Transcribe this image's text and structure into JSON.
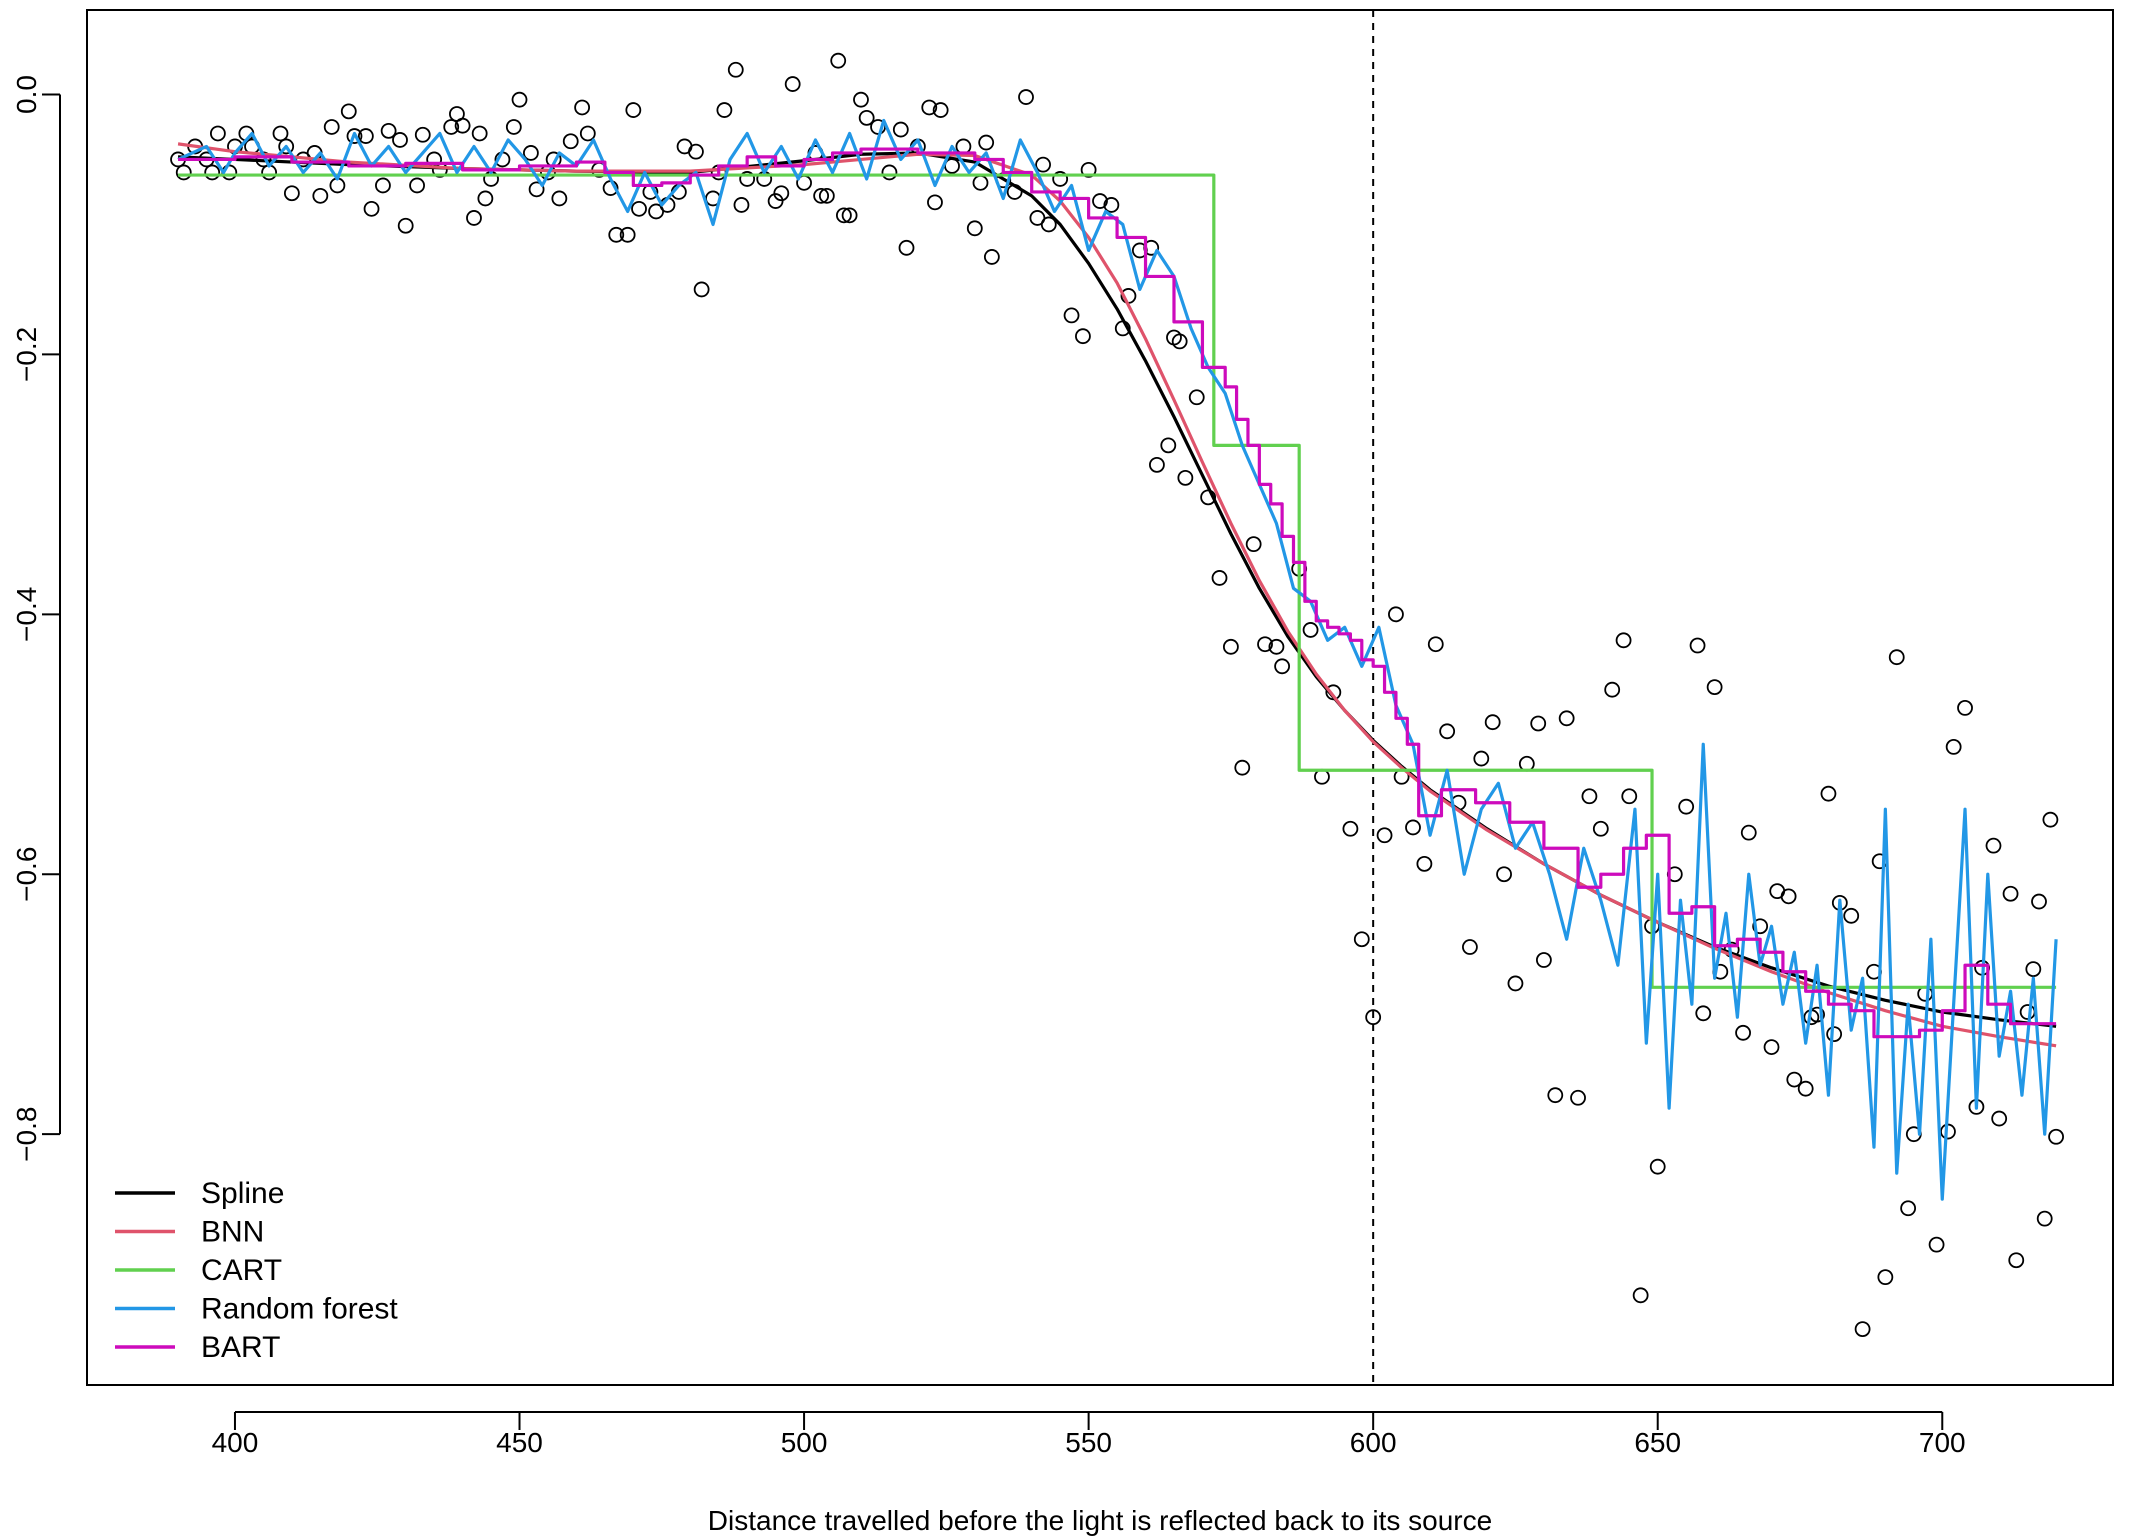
{
  "chart_data": {
    "type": "scatter",
    "title": "",
    "xlabel": "Distance travelled before the light is reflected back to its source",
    "ylabel": "",
    "xlim": [
      374,
      730
    ],
    "ylim": [
      -0.993,
      0.065
    ],
    "x_ticks": [
      400,
      450,
      500,
      550,
      600,
      650,
      700
    ],
    "x_tick_labels": [
      "400",
      "450",
      "500",
      "550",
      "600",
      "650",
      "700"
    ],
    "y_ticks": [
      0.0,
      -0.2,
      -0.4,
      -0.6,
      -0.8
    ],
    "y_tick_labels": [
      "0.0",
      "−0.2",
      "−0.4",
      "−0.6",
      "−0.8"
    ],
    "grid": false,
    "legend_position": "bottom-left",
    "reference_line": {
      "x": 600,
      "style": "dashed"
    },
    "points": [
      [
        390,
        -0.05
      ],
      [
        391,
        -0.06
      ],
      [
        393,
        -0.04
      ],
      [
        395,
        -0.05
      ],
      [
        396,
        -0.06
      ],
      [
        397,
        -0.03
      ],
      [
        399,
        -0.06
      ],
      [
        400,
        -0.04
      ],
      [
        402,
        -0.03
      ],
      [
        403,
        -0.04
      ],
      [
        405,
        -0.05
      ],
      [
        406,
        -0.06
      ],
      [
        408,
        -0.03
      ],
      [
        409,
        -0.04
      ],
      [
        410,
        -0.076
      ],
      [
        412,
        -0.05
      ],
      [
        414,
        -0.045
      ],
      [
        415,
        -0.078
      ],
      [
        417,
        -0.025
      ],
      [
        418,
        -0.07
      ],
      [
        420,
        -0.013
      ],
      [
        421,
        -0.032
      ],
      [
        423,
        -0.032
      ],
      [
        424,
        -0.088
      ],
      [
        426,
        -0.07
      ],
      [
        427,
        -0.028
      ],
      [
        429,
        -0.035
      ],
      [
        430,
        -0.101
      ],
      [
        432,
        -0.07
      ],
      [
        433,
        -0.031
      ],
      [
        435,
        -0.05
      ],
      [
        436,
        -0.058
      ],
      [
        438,
        -0.025
      ],
      [
        439,
        -0.015
      ],
      [
        440,
        -0.024
      ],
      [
        442,
        -0.095
      ],
      [
        443,
        -0.03
      ],
      [
        444,
        -0.08
      ],
      [
        445,
        -0.065
      ],
      [
        447,
        -0.05
      ],
      [
        449,
        -0.025
      ],
      [
        450,
        -0.004
      ],
      [
        452,
        -0.045
      ],
      [
        453,
        -0.073
      ],
      [
        455,
        -0.06
      ],
      [
        456,
        -0.05
      ],
      [
        457,
        -0.08
      ],
      [
        459,
        -0.036
      ],
      [
        461,
        -0.01
      ],
      [
        462,
        -0.03
      ],
      [
        464,
        -0.058
      ],
      [
        466,
        -0.072
      ],
      [
        467,
        -0.108
      ],
      [
        469,
        -0.108
      ],
      [
        470,
        -0.012
      ],
      [
        471,
        -0.088
      ],
      [
        473,
        -0.075
      ],
      [
        474,
        -0.09
      ],
      [
        476,
        -0.085
      ],
      [
        478,
        -0.075
      ],
      [
        479,
        -0.04
      ],
      [
        481,
        -0.044
      ],
      [
        482,
        -0.15
      ],
      [
        484,
        -0.08
      ],
      [
        485,
        -0.06
      ],
      [
        486,
        -0.012
      ],
      [
        488,
        0.019
      ],
      [
        489,
        -0.085
      ],
      [
        490,
        -0.065
      ],
      [
        493,
        -0.065
      ],
      [
        495,
        -0.082
      ],
      [
        496,
        -0.076
      ],
      [
        498,
        0.008
      ],
      [
        500,
        -0.068
      ],
      [
        502,
        -0.045
      ],
      [
        503,
        -0.078
      ],
      [
        504,
        -0.078
      ],
      [
        506,
        0.026
      ],
      [
        507,
        -0.093
      ],
      [
        508,
        -0.093
      ],
      [
        510,
        -0.004
      ],
      [
        511,
        -0.018
      ],
      [
        513,
        -0.025
      ],
      [
        515,
        -0.06
      ],
      [
        517,
        -0.027
      ],
      [
        518,
        -0.118
      ],
      [
        520,
        -0.04
      ],
      [
        522,
        -0.01
      ],
      [
        523,
        -0.083
      ],
      [
        524,
        -0.012
      ],
      [
        526,
        -0.055
      ],
      [
        528,
        -0.04
      ],
      [
        530,
        -0.103
      ],
      [
        531,
        -0.068
      ],
      [
        532,
        -0.037
      ],
      [
        533,
        -0.125
      ],
      [
        535,
        -0.066
      ],
      [
        537,
        -0.075
      ],
      [
        539,
        -0.002
      ],
      [
        541,
        -0.095
      ],
      [
        542,
        -0.054
      ],
      [
        543,
        -0.1
      ],
      [
        545,
        -0.065
      ],
      [
        547,
        -0.17
      ],
      [
        549,
        -0.186
      ],
      [
        550,
        -0.058
      ],
      [
        552,
        -0.082
      ],
      [
        554,
        -0.085
      ],
      [
        556,
        -0.18
      ],
      [
        557,
        -0.155
      ],
      [
        559,
        -0.12
      ],
      [
        561,
        -0.118
      ],
      [
        562,
        -0.285
      ],
      [
        564,
        -0.27
      ],
      [
        565,
        -0.187
      ],
      [
        566,
        -0.19
      ],
      [
        567,
        -0.295
      ],
      [
        569,
        -0.233
      ],
      [
        571,
        -0.31
      ],
      [
        573,
        -0.372
      ],
      [
        575,
        -0.425
      ],
      [
        577,
        -0.518
      ],
      [
        579,
        -0.346
      ],
      [
        581,
        -0.423
      ],
      [
        583,
        -0.425
      ],
      [
        584,
        -0.44
      ],
      [
        587,
        -0.365
      ],
      [
        589,
        -0.412
      ],
      [
        591,
        -0.525
      ],
      [
        593,
        -0.46
      ],
      [
        596,
        -0.565
      ],
      [
        598,
        -0.65
      ],
      [
        600,
        -0.71
      ],
      [
        602,
        -0.57
      ],
      [
        604,
        -0.4
      ],
      [
        605,
        -0.525
      ],
      [
        607,
        -0.564
      ],
      [
        609,
        -0.592
      ],
      [
        611,
        -0.423
      ],
      [
        613,
        -0.49
      ],
      [
        615,
        -0.545
      ],
      [
        617,
        -0.656
      ],
      [
        619,
        -0.511
      ],
      [
        621,
        -0.483
      ],
      [
        623,
        -0.6
      ],
      [
        625,
        -0.684
      ],
      [
        627,
        -0.515
      ],
      [
        629,
        -0.484
      ],
      [
        630,
        -0.666
      ],
      [
        632,
        -0.77
      ],
      [
        634,
        -0.48
      ],
      [
        636,
        -0.772
      ],
      [
        638,
        -0.54
      ],
      [
        640,
        -0.565
      ],
      [
        642,
        -0.458
      ],
      [
        644,
        -0.42
      ],
      [
        645,
        -0.54
      ],
      [
        647,
        -0.924
      ],
      [
        649,
        -0.64
      ],
      [
        650,
        -0.825
      ],
      [
        653,
        -0.6
      ],
      [
        655,
        -0.548
      ],
      [
        657,
        -0.424
      ],
      [
        658,
        -0.707
      ],
      [
        660,
        -0.456
      ],
      [
        661,
        -0.675
      ],
      [
        663,
        -0.658
      ],
      [
        665,
        -0.722
      ],
      [
        666,
        -0.568
      ],
      [
        668,
        -0.64
      ],
      [
        670,
        -0.733
      ],
      [
        671,
        -0.613
      ],
      [
        673,
        -0.617
      ],
      [
        674,
        -0.758
      ],
      [
        676,
        -0.765
      ],
      [
        677,
        -0.71
      ],
      [
        678,
        -0.708
      ],
      [
        680,
        -0.538
      ],
      [
        681,
        -0.723
      ],
      [
        682,
        -0.622
      ],
      [
        684,
        -0.632
      ],
      [
        686,
        -0.95
      ],
      [
        688,
        -0.675
      ],
      [
        689,
        -0.59
      ],
      [
        690,
        -0.91
      ],
      [
        692,
        -0.433
      ],
      [
        694,
        -0.857
      ],
      [
        695,
        -0.8
      ],
      [
        697,
        -0.692
      ],
      [
        699,
        -0.885
      ],
      [
        701,
        -0.798
      ],
      [
        702,
        -0.502
      ],
      [
        704,
        -0.472
      ],
      [
        706,
        -0.779
      ],
      [
        707,
        -0.672
      ],
      [
        709,
        -0.578
      ],
      [
        710,
        -0.788
      ],
      [
        712,
        -0.615
      ],
      [
        713,
        -0.897
      ],
      [
        715,
        -0.706
      ],
      [
        716,
        -0.673
      ],
      [
        717,
        -0.621
      ],
      [
        718,
        -0.865
      ],
      [
        719,
        -0.558
      ],
      [
        720,
        -0.802
      ]
    ],
    "series": [
      {
        "name": "Spline",
        "color": "#000000",
        "x": [
          390,
          400,
          420,
          440,
          460,
          480,
          500,
          510,
          520,
          530,
          540,
          545,
          550,
          555,
          560,
          565,
          570,
          575,
          580,
          585,
          590,
          595,
          600,
          605,
          610,
          620,
          630,
          640,
          650,
          660,
          670,
          680,
          690,
          700,
          710,
          720
        ],
        "y": [
          -0.048,
          -0.05,
          -0.054,
          -0.057,
          -0.059,
          -0.06,
          -0.051,
          -0.046,
          -0.045,
          -0.052,
          -0.078,
          -0.1,
          -0.13,
          -0.165,
          -0.205,
          -0.248,
          -0.293,
          -0.338,
          -0.38,
          -0.417,
          -0.448,
          -0.474,
          -0.497,
          -0.517,
          -0.535,
          -0.565,
          -0.592,
          -0.616,
          -0.637,
          -0.656,
          -0.672,
          -0.686,
          -0.697,
          -0.706,
          -0.712,
          -0.717
        ]
      },
      {
        "name": "BNN",
        "color": "#DF536B",
        "x": [
          390,
          400,
          420,
          440,
          460,
          480,
          500,
          510,
          520,
          530,
          540,
          545,
          550,
          555,
          560,
          565,
          570,
          575,
          580,
          585,
          590,
          595,
          600,
          605,
          610,
          620,
          630,
          640,
          650,
          660,
          670,
          680,
          690,
          700,
          710,
          720
        ],
        "y": [
          -0.038,
          -0.044,
          -0.052,
          -0.057,
          -0.059,
          -0.059,
          -0.054,
          -0.05,
          -0.046,
          -0.047,
          -0.062,
          -0.082,
          -0.11,
          -0.145,
          -0.188,
          -0.235,
          -0.283,
          -0.33,
          -0.374,
          -0.413,
          -0.446,
          -0.474,
          -0.498,
          -0.518,
          -0.536,
          -0.566,
          -0.592,
          -0.616,
          -0.637,
          -0.657,
          -0.675,
          -0.691,
          -0.705,
          -0.717,
          -0.725,
          -0.732
        ]
      },
      {
        "name": "CART",
        "color": "#61D04F",
        "step": true,
        "x": [
          390,
          571,
          572,
          572,
          586,
          587,
          587,
          588,
          588,
          648,
          649,
          649,
          720
        ],
        "y": [
          -0.062,
          -0.062,
          -0.062,
          -0.27,
          -0.27,
          -0.27,
          -0.52,
          -0.52,
          -0.52,
          -0.52,
          -0.52,
          -0.687,
          -0.687
        ]
      },
      {
        "name": "Random forest",
        "color": "#2297E6",
        "x": [
          390,
          395,
          398,
          400,
          403,
          406,
          409,
          412,
          415,
          418,
          421,
          424,
          427,
          430,
          433,
          436,
          439,
          442,
          445,
          448,
          451,
          454,
          457,
          460,
          463,
          466,
          469,
          472,
          475,
          478,
          481,
          484,
          487,
          490,
          493,
          496,
          499,
          502,
          505,
          508,
          511,
          514,
          517,
          520,
          523,
          526,
          529,
          532,
          535,
          538,
          541,
          544,
          547,
          550,
          553,
          556,
          559,
          562,
          565,
          568,
          571,
          574,
          577,
          580,
          583,
          586,
          589,
          592,
          595,
          598,
          601,
          604,
          607,
          610,
          613,
          616,
          619,
          622,
          625,
          628,
          631,
          634,
          637,
          640,
          643,
          646,
          648,
          650,
          652,
          654,
          656,
          658,
          660,
          662,
          664,
          666,
          668,
          670,
          672,
          674,
          676,
          678,
          680,
          682,
          684,
          686,
          688,
          690,
          692,
          694,
          696,
          698,
          700,
          702,
          704,
          706,
          708,
          710,
          712,
          714,
          716,
          718,
          720
        ],
        "y": [
          -0.05,
          -0.04,
          -0.06,
          -0.045,
          -0.03,
          -0.055,
          -0.04,
          -0.06,
          -0.045,
          -0.065,
          -0.03,
          -0.055,
          -0.04,
          -0.06,
          -0.045,
          -0.03,
          -0.06,
          -0.04,
          -0.06,
          -0.035,
          -0.05,
          -0.07,
          -0.045,
          -0.055,
          -0.035,
          -0.065,
          -0.09,
          -0.06,
          -0.085,
          -0.07,
          -0.06,
          -0.1,
          -0.05,
          -0.03,
          -0.06,
          -0.04,
          -0.065,
          -0.035,
          -0.06,
          -0.03,
          -0.065,
          -0.02,
          -0.05,
          -0.035,
          -0.07,
          -0.04,
          -0.06,
          -0.045,
          -0.08,
          -0.035,
          -0.06,
          -0.09,
          -0.07,
          -0.12,
          -0.09,
          -0.1,
          -0.15,
          -0.12,
          -0.14,
          -0.18,
          -0.21,
          -0.23,
          -0.27,
          -0.3,
          -0.33,
          -0.38,
          -0.39,
          -0.42,
          -0.41,
          -0.44,
          -0.41,
          -0.47,
          -0.5,
          -0.57,
          -0.52,
          -0.6,
          -0.55,
          -0.53,
          -0.58,
          -0.56,
          -0.6,
          -0.65,
          -0.58,
          -0.62,
          -0.67,
          -0.55,
          -0.73,
          -0.6,
          -0.78,
          -0.62,
          -0.7,
          -0.5,
          -0.68,
          -0.63,
          -0.71,
          -0.6,
          -0.67,
          -0.64,
          -0.7,
          -0.66,
          -0.73,
          -0.67,
          -0.77,
          -0.62,
          -0.72,
          -0.68,
          -0.81,
          -0.55,
          -0.83,
          -0.7,
          -0.8,
          -0.65,
          -0.85,
          -0.7,
          -0.55,
          -0.78,
          -0.6,
          -0.74,
          -0.69,
          -0.77,
          -0.68,
          -0.8,
          -0.65
        ]
      },
      {
        "name": "BART",
        "color": "#CD0BBC",
        "step": true,
        "x": [
          390,
          400,
          410,
          420,
          430,
          440,
          450,
          460,
          465,
          470,
          475,
          480,
          485,
          490,
          495,
          500,
          505,
          510,
          520,
          530,
          535,
          540,
          545,
          550,
          555,
          560,
          565,
          570,
          574,
          576,
          578,
          580,
          582,
          584,
          586,
          588,
          590,
          592,
          594,
          596,
          598,
          600,
          602,
          604,
          606,
          608,
          612,
          618,
          624,
          630,
          636,
          640,
          644,
          648,
          652,
          656,
          660,
          664,
          668,
          672,
          676,
          680,
          684,
          688,
          692,
          696,
          700,
          704,
          708,
          712,
          716,
          720
        ],
        "y": [
          -0.05,
          -0.048,
          -0.052,
          -0.055,
          -0.053,
          -0.058,
          -0.055,
          -0.052,
          -0.06,
          -0.07,
          -0.068,
          -0.062,
          -0.055,
          -0.048,
          -0.055,
          -0.05,
          -0.045,
          -0.042,
          -0.045,
          -0.05,
          -0.06,
          -0.075,
          -0.08,
          -0.095,
          -0.11,
          -0.14,
          -0.175,
          -0.21,
          -0.225,
          -0.25,
          -0.27,
          -0.3,
          -0.315,
          -0.34,
          -0.36,
          -0.39,
          -0.405,
          -0.41,
          -0.415,
          -0.42,
          -0.435,
          -0.44,
          -0.46,
          -0.48,
          -0.5,
          -0.555,
          -0.535,
          -0.545,
          -0.56,
          -0.58,
          -0.61,
          -0.6,
          -0.58,
          -0.57,
          -0.63,
          -0.625,
          -0.655,
          -0.65,
          -0.66,
          -0.675,
          -0.69,
          -0.7,
          -0.705,
          -0.725,
          -0.725,
          -0.72,
          -0.705,
          -0.67,
          -0.7,
          -0.715,
          -0.715,
          -0.715
        ]
      }
    ],
    "legend": [
      "Spline",
      "BNN",
      "CART",
      "Random forest",
      "BART"
    ]
  }
}
